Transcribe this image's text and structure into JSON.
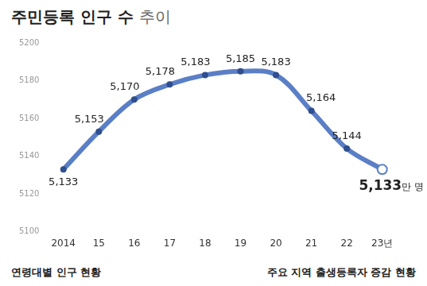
{
  "chart_data": {
    "type": "line",
    "title": "주민등록 인구 수 추이",
    "categories": [
      "2014",
      "15",
      "16",
      "17",
      "18",
      "19",
      "20",
      "21",
      "22",
      "23년"
    ],
    "values": [
      5133,
      5153,
      5170,
      5178,
      5183,
      5185,
      5183,
      5164,
      5144,
      5133
    ],
    "value_labels": [
      "5,133",
      "5,153",
      "5,170",
      "5,178",
      "5,183",
      "5,185",
      "5,183",
      "5,164",
      "5,144",
      "5,133만 명"
    ],
    "data_labels": true,
    "color": "#5b7fc6",
    "ylim": [
      5100,
      5200
    ],
    "yticks": [
      5100,
      5120,
      5140,
      5160,
      5180,
      5200
    ],
    "grid": false,
    "annotations": [
      "연령대별 인구 현황",
      "주요 지역 출생등록자 증감 현황"
    ]
  }
}
